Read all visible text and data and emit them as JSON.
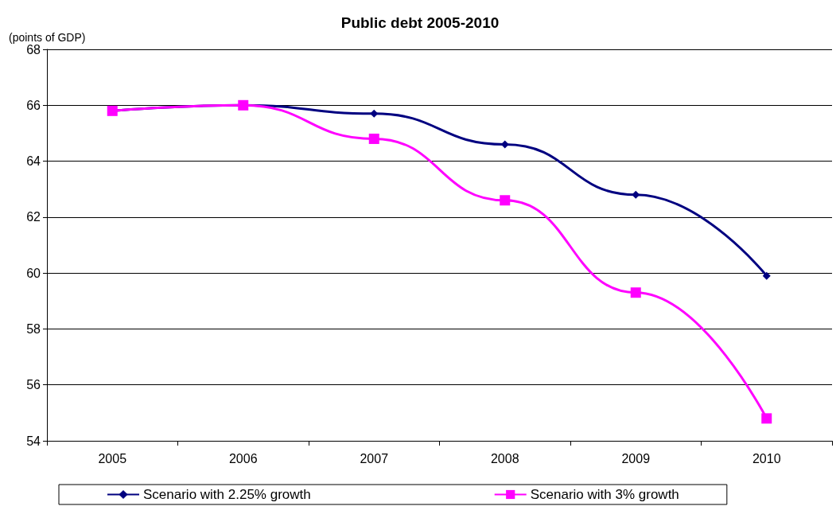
{
  "chart_data": {
    "type": "line",
    "title": "Public debt 2005-2010",
    "ylabel": "(points of GDP)",
    "categories": [
      "2005",
      "2006",
      "2007",
      "2008",
      "2009",
      "2010"
    ],
    "series": [
      {
        "name": "Scenario with 2.25% growth",
        "color": "#000080",
        "marker": "diamond",
        "values": [
          65.8,
          66.0,
          65.7,
          64.6,
          62.8,
          59.9
        ]
      },
      {
        "name": "Scenario with 3% growth",
        "color": "#ff00ff",
        "marker": "square",
        "values": [
          65.8,
          66.0,
          64.8,
          62.6,
          59.3,
          54.8
        ]
      }
    ],
    "ylim": [
      54,
      68
    ],
    "yticks": [
      54,
      56,
      58,
      60,
      62,
      64,
      66,
      68
    ],
    "grid": "y",
    "legend": "bottom"
  }
}
